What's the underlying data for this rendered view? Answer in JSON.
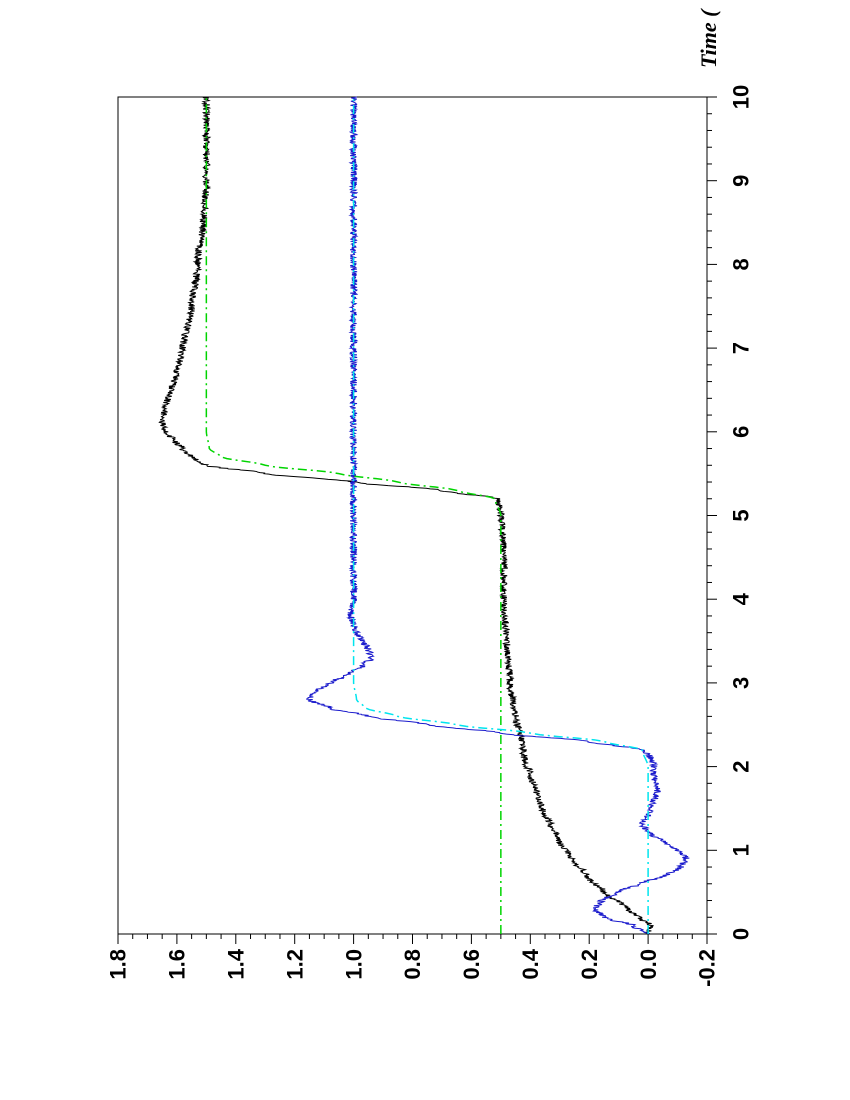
{
  "chart_data": {
    "type": "line",
    "orientation": "rotated 90 degrees counter-clockwise",
    "xlabel": "Time (",
    "ylabel": "",
    "xlim": [
      0,
      10
    ],
    "ylim": [
      -0.2,
      1.8
    ],
    "x_ticks": [
      "0",
      "1",
      "2",
      "3",
      "4",
      "5",
      "6",
      "7",
      "8",
      "9",
      "10"
    ],
    "y_ticks": [
      "-0.2",
      "0.0",
      "0.2",
      "0.4",
      "0.6",
      "0.8",
      "1.0",
      "1.2",
      "1.4",
      "1.6",
      "1.8"
    ],
    "grid": false,
    "legend": "none",
    "series": [
      {
        "color": "#000000",
        "style": "solid",
        "noise": 0.012,
        "points": [
          [
            0,
            0.0
          ],
          [
            0.1,
            -0.01
          ],
          [
            0.2,
            0.03
          ],
          [
            0.3,
            0.07
          ],
          [
            0.5,
            0.15
          ],
          [
            0.7,
            0.21
          ],
          [
            0.9,
            0.26
          ],
          [
            1.1,
            0.3
          ],
          [
            1.3,
            0.33
          ],
          [
            1.5,
            0.36
          ],
          [
            1.7,
            0.38
          ],
          [
            1.9,
            0.4
          ],
          [
            2.1,
            0.42
          ],
          [
            2.3,
            0.43
          ],
          [
            2.6,
            0.45
          ],
          [
            3.0,
            0.47
          ],
          [
            3.5,
            0.48
          ],
          [
            4.0,
            0.49
          ],
          [
            4.5,
            0.49
          ],
          [
            5.0,
            0.5
          ],
          [
            5.2,
            0.51
          ],
          [
            5.3,
            0.7
          ],
          [
            5.4,
            1.0
          ],
          [
            5.5,
            1.3
          ],
          [
            5.6,
            1.5
          ],
          [
            5.7,
            1.55
          ],
          [
            5.8,
            1.58
          ],
          [
            5.9,
            1.61
          ],
          [
            6.0,
            1.64
          ],
          [
            6.1,
            1.65
          ],
          [
            6.3,
            1.64
          ],
          [
            6.5,
            1.62
          ],
          [
            6.7,
            1.6
          ],
          [
            7.0,
            1.58
          ],
          [
            7.5,
            1.55
          ],
          [
            8.0,
            1.53
          ],
          [
            8.5,
            1.51
          ],
          [
            9.0,
            1.5
          ],
          [
            9.5,
            1.5
          ],
          [
            10.0,
            1.5
          ]
        ]
      },
      {
        "color": "#1a1acc",
        "style": "solid",
        "noise": 0.012,
        "points": [
          [
            0,
            0.0
          ],
          [
            0.1,
            0.05
          ],
          [
            0.2,
            0.15
          ],
          [
            0.3,
            0.18
          ],
          [
            0.4,
            0.16
          ],
          [
            0.5,
            0.1
          ],
          [
            0.6,
            0.03
          ],
          [
            0.7,
            -0.06
          ],
          [
            0.8,
            -0.11
          ],
          [
            0.9,
            -0.13
          ],
          [
            1.0,
            -0.1
          ],
          [
            1.1,
            -0.05
          ],
          [
            1.2,
            -0.01
          ],
          [
            1.3,
            0.02
          ],
          [
            1.5,
            -0.01
          ],
          [
            1.7,
            -0.03
          ],
          [
            1.9,
            -0.02
          ],
          [
            2.0,
            -0.02
          ],
          [
            2.1,
            -0.01
          ],
          [
            2.2,
            0.02
          ],
          [
            2.3,
            0.2
          ],
          [
            2.4,
            0.5
          ],
          [
            2.5,
            0.75
          ],
          [
            2.6,
            0.95
          ],
          [
            2.7,
            1.08
          ],
          [
            2.8,
            1.15
          ],
          [
            2.9,
            1.13
          ],
          [
            3.0,
            1.08
          ],
          [
            3.1,
            1.02
          ],
          [
            3.2,
            0.97
          ],
          [
            3.3,
            0.94
          ],
          [
            3.4,
            0.95
          ],
          [
            3.5,
            0.97
          ],
          [
            3.6,
            0.99
          ],
          [
            3.8,
            1.01
          ],
          [
            4.0,
            1.0
          ],
          [
            4.5,
            1.0
          ],
          [
            5.0,
            1.0
          ],
          [
            6.0,
            1.0
          ],
          [
            7.0,
            1.0
          ],
          [
            8.0,
            1.0
          ],
          [
            9.0,
            1.0
          ],
          [
            10.0,
            1.0
          ]
        ]
      },
      {
        "color": "#00d400",
        "style": "dashdot",
        "points": [
          [
            0,
            0.5
          ],
          [
            5.0,
            0.5
          ],
          [
            5.2,
            0.52
          ],
          [
            5.3,
            0.65
          ],
          [
            5.4,
            0.85
          ],
          [
            5.5,
            1.05
          ],
          [
            5.6,
            1.3
          ],
          [
            5.7,
            1.45
          ],
          [
            5.8,
            1.49
          ],
          [
            6.0,
            1.5
          ],
          [
            10.0,
            1.5
          ]
        ]
      },
      {
        "color": "#00e5ee",
        "style": "dashdot",
        "points": [
          [
            0,
            0.0
          ],
          [
            2.0,
            0.0
          ],
          [
            2.2,
            0.02
          ],
          [
            2.3,
            0.15
          ],
          [
            2.4,
            0.4
          ],
          [
            2.5,
            0.65
          ],
          [
            2.6,
            0.85
          ],
          [
            2.7,
            0.96
          ],
          [
            2.8,
            0.99
          ],
          [
            3.0,
            1.0
          ],
          [
            10.0,
            1.0
          ]
        ]
      }
    ]
  }
}
